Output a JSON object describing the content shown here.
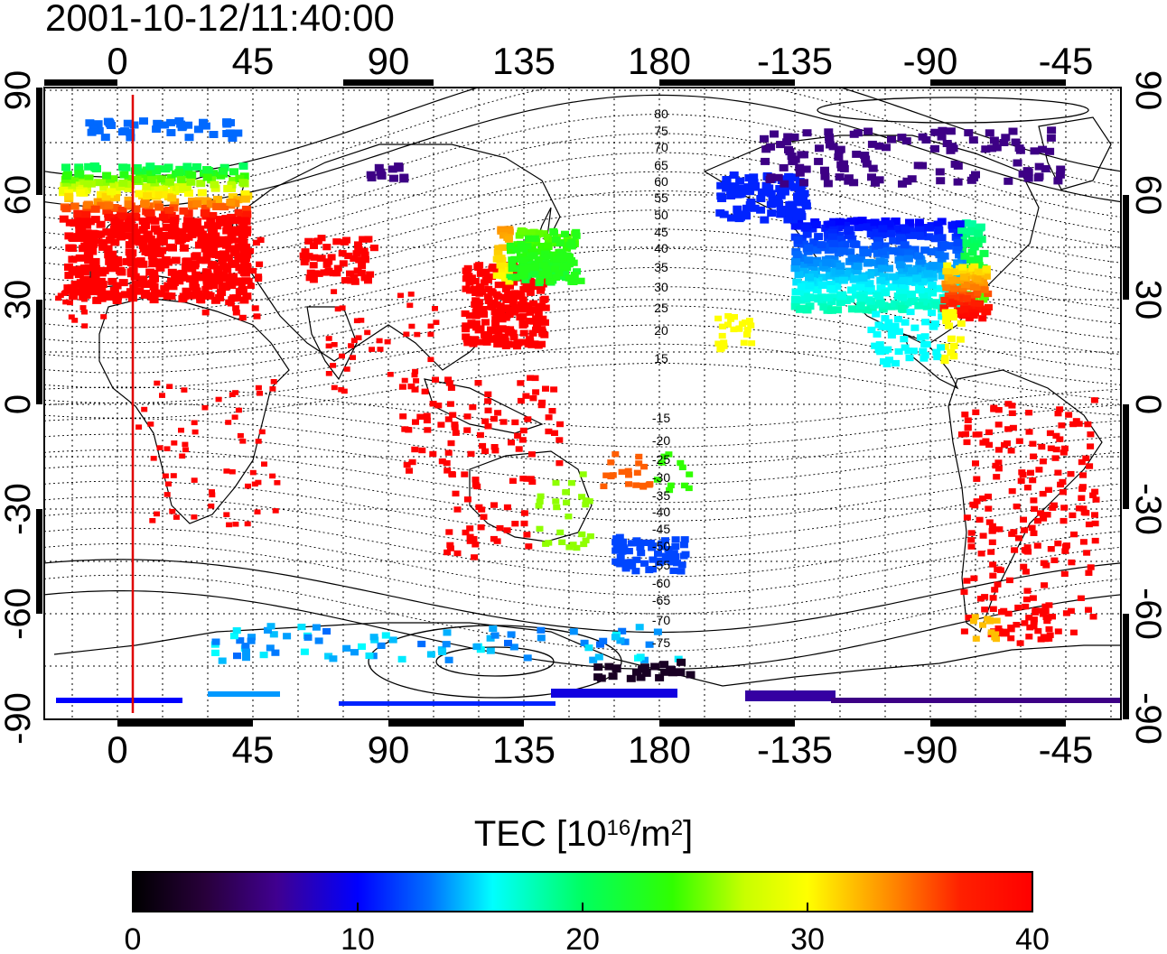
{
  "title": "2001-10-12/11:40:00",
  "map": {
    "top_tick_labels": [
      "0",
      "45",
      "90",
      "135",
      "180",
      "-135",
      "-90",
      "-45"
    ],
    "bottom_tick_labels": [
      "0",
      "45",
      "90",
      "135",
      "180",
      "-135",
      "-90",
      "-45"
    ],
    "left_tick_labels": [
      "90",
      "60",
      "30",
      "0",
      "-30",
      "-60",
      "-90"
    ],
    "right_tick_labels": [
      "90",
      "60",
      "30",
      "0",
      "-30",
      "-60",
      "-90"
    ],
    "contour_labels": [
      "80",
      "75",
      "70",
      "65",
      "60",
      "55",
      "50",
      "45",
      "40",
      "35",
      "30",
      "25",
      "20",
      "15",
      "-15",
      "-20",
      "-25",
      "-30",
      "-35",
      "-40",
      "-45",
      "-50",
      "-55",
      "-60",
      "-65",
      "-70",
      "-75"
    ],
    "subsolar_line_longitude": 5,
    "subsolar_line_color": "#e00000",
    "coastline_color": "#000000"
  },
  "colorbar": {
    "label_main": "TEC  [10",
    "label_exp1": "16",
    "label_mid": "/m",
    "label_exp2": "2",
    "label_end": "]",
    "min": 0,
    "max": 40,
    "tick_labels": [
      "0",
      "10",
      "20",
      "30",
      "40"
    ]
  },
  "tec_regions": [
    {
      "name": "europe",
      "value": 40
    },
    {
      "name": "scandinavia",
      "value": 25
    },
    {
      "name": "east-asia",
      "value": 40
    },
    {
      "name": "japan-north",
      "value": 24
    },
    {
      "name": "north-america",
      "value": 14
    },
    {
      "name": "canada-north",
      "value": 8
    },
    {
      "name": "south-america",
      "value": 40
    },
    {
      "name": "antarctica-coast",
      "value": 12
    }
  ]
}
